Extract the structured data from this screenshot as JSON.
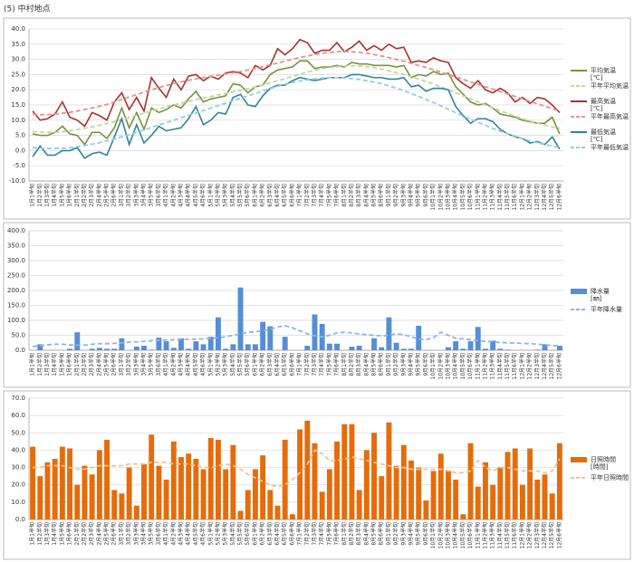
{
  "title": "(5) 中村地点",
  "chart_data": [
    {
      "type": "line",
      "categories": [
        "1月1半旬",
        "1月2半旬",
        "1月3半旬",
        "1月4半旬",
        "1月5半旬",
        "1月6半旬",
        "2月1半旬",
        "2月2半旬",
        "2月3半旬",
        "2月4半旬",
        "2月5半旬",
        "2月6半旬",
        "3月1半旬",
        "3月2半旬",
        "3月3半旬",
        "3月4半旬",
        "3月5半旬",
        "3月6半旬",
        "4月1半旬",
        "4月2半旬",
        "4月3半旬",
        "4月4半旬",
        "4月5半旬",
        "4月6半旬",
        "5月1半旬",
        "5月2半旬",
        "5月3半旬",
        "5月4半旬",
        "5月5半旬",
        "5月6半旬",
        "6月1半旬",
        "6月2半旬",
        "6月3半旬",
        "6月4半旬",
        "6月5半旬",
        "6月6半旬",
        "7月1半旬",
        "7月2半旬",
        "7月3半旬",
        "7月4半旬",
        "7月5半旬",
        "7月6半旬",
        "8月1半旬",
        "8月2半旬",
        "8月3半旬",
        "8月4半旬",
        "8月5半旬",
        "8月6半旬",
        "9月1半旬",
        "9月2半旬",
        "9月3半旬",
        "9月4半旬",
        "9月5半旬",
        "9月6半旬",
        "10月1半旬",
        "10月2半旬",
        "10月3半旬",
        "10月4半旬",
        "10月5半旬",
        "10月6半旬",
        "11月1半旬",
        "11月2半旬",
        "11月3半旬",
        "11月4半旬",
        "11月5半旬",
        "11月6半旬",
        "12月1半旬",
        "12月2半旬",
        "12月3半旬",
        "12月4半旬",
        "12月5半旬",
        "12月6半旬"
      ],
      "ylim": [
        -10,
        40
      ],
      "yticks": [
        {
          "value": -10,
          "label": "-10.0"
        },
        {
          "value": -5,
          "label": "-5.0"
        },
        {
          "value": 0,
          "label": "0.0"
        },
        {
          "value": 5,
          "label": "5.0"
        },
        {
          "value": 10,
          "label": "10.0"
        },
        {
          "value": 15,
          "label": "15.0"
        },
        {
          "value": 20,
          "label": "20.0"
        },
        {
          "value": 25,
          "label": "25.0"
        },
        {
          "value": 30,
          "label": "30.0"
        },
        {
          "value": 35,
          "label": "35.0"
        },
        {
          "value": 40,
          "label": "40.0"
        }
      ],
      "grid": true,
      "series": [
        {
          "name": "平均気温",
          "unit": "[℃]",
          "type": "line",
          "color": "#77933c",
          "values": [
            5.5,
            5,
            5,
            6,
            8,
            5.5,
            5,
            2,
            6,
            6,
            4,
            7.5,
            14,
            7.5,
            12.5,
            7,
            14,
            12.5,
            13.5,
            15,
            14,
            17,
            19.5,
            16,
            17,
            17.5,
            18,
            22,
            21.5,
            19,
            21,
            21.5,
            25,
            26.5,
            27,
            27.5,
            29.5,
            29.5,
            27,
            27.5,
            27.5,
            28,
            27.5,
            29,
            28.5,
            28.5,
            28,
            28,
            28,
            27.5,
            28,
            24,
            25,
            24.5,
            26,
            25,
            25.5,
            21,
            18.5,
            16,
            15,
            15.5,
            14,
            12,
            11.5,
            11,
            10,
            9.5,
            9,
            9,
            11,
            5.5
          ]
        },
        {
          "name": "平年平均気温",
          "type": "line",
          "dashed": true,
          "color": "#c3d69b",
          "values": [
            6.3,
            6.1,
            6,
            6,
            6.2,
            6.5,
            6.9,
            7.3,
            7.8,
            8.3,
            8.9,
            9.5,
            10.2,
            10.9,
            11.6,
            12.3,
            13,
            13.7,
            14.4,
            15,
            15.6,
            16.2,
            16.8,
            17.3,
            17.8,
            18.3,
            18.8,
            19.3,
            19.8,
            20.4,
            21,
            21.6,
            22.3,
            23,
            23.7,
            24.4,
            25.1,
            25.8,
            26.4,
            26.9,
            27.3,
            27.6,
            27.8,
            27.9,
            27.8,
            27.6,
            27.2,
            26.8,
            26.2,
            25.6,
            25,
            24.3,
            23.5,
            22.7,
            21.9,
            21,
            20,
            19,
            18,
            17,
            16,
            15,
            14,
            13.1,
            12.2,
            11.3,
            10.5,
            9.7,
            9,
            8.4,
            7.8,
            7.3
          ]
        },
        {
          "name": "最高気温",
          "unit": "[℃]",
          "type": "line",
          "color": "#a83232",
          "values": [
            13,
            10,
            10.5,
            12,
            16,
            11,
            10,
            8,
            12.5,
            11.5,
            10,
            16,
            19,
            13.5,
            17.5,
            13,
            24,
            20.5,
            17.5,
            23.5,
            20,
            24.5,
            25,
            23,
            24.5,
            23.5,
            25.5,
            26,
            25.5,
            24,
            28,
            26.5,
            28,
            33.5,
            31.5,
            33.5,
            36.5,
            35.5,
            32,
            33,
            33,
            35.5,
            32.5,
            34,
            36,
            33,
            34.5,
            33,
            35,
            33.5,
            34,
            29,
            29.5,
            29,
            30.5,
            29.5,
            29,
            24,
            22,
            20.5,
            23,
            20,
            19,
            20.5,
            19,
            16,
            17.5,
            15.5,
            17.5,
            17,
            15,
            12.5
          ]
        },
        {
          "name": "平年最高気温",
          "type": "line",
          "dashed": true,
          "color": "#e6928c",
          "values": [
            12,
            11.8,
            11.8,
            12,
            12.3,
            12.6,
            13,
            13.5,
            14,
            14.6,
            15.2,
            16,
            16.8,
            17.6,
            18.4,
            19.2,
            20,
            20.7,
            21.4,
            22,
            22.6,
            23.1,
            23.6,
            24,
            24.4,
            24.8,
            25.2,
            25.6,
            26,
            26.5,
            27,
            27.6,
            28.2,
            28.8,
            29.4,
            30,
            30.6,
            31.1,
            31.6,
            32,
            32.3,
            32.5,
            32.6,
            32.5,
            32.3,
            32,
            31.6,
            31.1,
            30.6,
            30,
            29.4,
            28.7,
            28,
            27.3,
            26.6,
            25.8,
            25,
            24.2,
            23.4,
            22.6,
            21.8,
            21,
            20.2,
            19.4,
            18.6,
            17.8,
            17,
            16.2,
            15.4,
            14.6,
            13.8,
            13
          ]
        },
        {
          "name": "最低気温",
          "unit": "[℃]",
          "type": "line",
          "color": "#31859c",
          "values": [
            -2,
            1.5,
            -1.5,
            -1.5,
            0,
            0,
            1,
            -2.5,
            -1,
            -0.5,
            -1.5,
            4.5,
            10.5,
            2,
            8.5,
            2.5,
            5,
            8,
            6.5,
            7,
            7.5,
            10.5,
            14.5,
            8.5,
            10,
            12.5,
            12,
            17.5,
            18.5,
            15,
            14.5,
            18,
            20.5,
            21.5,
            21.5,
            23,
            24,
            23.5,
            23,
            23.5,
            24,
            24,
            24,
            25,
            25,
            24.5,
            24,
            24,
            23.5,
            23.5,
            24,
            21,
            21.5,
            19.5,
            20.5,
            20.5,
            20,
            14.5,
            11.5,
            9,
            10.5,
            10.5,
            9.5,
            7,
            5.5,
            4.5,
            4,
            2.5,
            3,
            2,
            4.5,
            0.5
          ]
        },
        {
          "name": "平年最低気温",
          "type": "line",
          "dashed": true,
          "color": "#93cddd",
          "values": [
            1,
            0.8,
            0.7,
            0.7,
            0.8,
            1,
            1.3,
            1.7,
            2.1,
            2.6,
            3.2,
            3.8,
            4.5,
            5.2,
            6,
            6.8,
            7.6,
            8.4,
            9.2,
            10,
            10.8,
            11.6,
            12.4,
            13.2,
            14,
            14.8,
            15.6,
            16.4,
            17.2,
            18,
            18.8,
            19.6,
            20.4,
            21.1,
            21.8,
            22.4,
            22.9,
            23.3,
            23.6,
            23.8,
            24,
            24,
            23.9,
            23.7,
            23.4,
            23,
            22.5,
            22,
            21.3,
            20.5,
            19.7,
            18.8,
            17.8,
            16.8,
            15.8,
            14.7,
            13.6,
            12.5,
            11.4,
            10.3,
            9.3,
            8.3,
            7.3,
            6.4,
            5.5,
            4.7,
            3.9,
            3.2,
            2.6,
            2,
            1.5,
            1
          ]
        }
      ]
    },
    {
      "type": "bar",
      "categories": [
        "1月1半旬",
        "1月2半旬",
        "1月3半旬",
        "1月4半旬",
        "1月5半旬",
        "1月6半旬",
        "2月1半旬",
        "2月2半旬",
        "2月3半旬",
        "2月4半旬",
        "2月5半旬",
        "2月6半旬",
        "3月1半旬",
        "3月2半旬",
        "3月3半旬",
        "3月4半旬",
        "3月5半旬",
        "3月6半旬",
        "4月1半旬",
        "4月2半旬",
        "4月3半旬",
        "4月4半旬",
        "4月5半旬",
        "4月6半旬",
        "5月1半旬",
        "5月2半旬",
        "5月3半旬",
        "5月4半旬",
        "5月5半旬",
        "5月6半旬",
        "6月1半旬",
        "6月2半旬",
        "6月3半旬",
        "6月4半旬",
        "6月5半旬",
        "6月6半旬",
        "7月1半旬",
        "7月2半旬",
        "7月3半旬",
        "7月4半旬",
        "7月5半旬",
        "7月6半旬",
        "8月1半旬",
        "8月2半旬",
        "8月3半旬",
        "8月4半旬",
        "8月5半旬",
        "8月6半旬",
        "9月1半旬",
        "9月2半旬",
        "9月3半旬",
        "9月4半旬",
        "9月5半旬",
        "9月6半旬",
        "10月1半旬",
        "10月2半旬",
        "10月3半旬",
        "10月4半旬",
        "10月5半旬",
        "10月6半旬",
        "11月1半旬",
        "11月2半旬",
        "11月3半旬",
        "11月4半旬",
        "11月5半旬",
        "11月6半旬",
        "12月1半旬",
        "12月2半旬",
        "12月3半旬",
        "12月4半旬",
        "12月5半旬",
        "12月6半旬"
      ],
      "ylim": [
        0,
        400
      ],
      "yticks": [
        {
          "value": 0,
          "label": "0.0"
        },
        {
          "value": 50,
          "label": "50.0"
        },
        {
          "value": 100,
          "label": "100.0"
        },
        {
          "value": 150,
          "label": "150.0"
        },
        {
          "value": 200,
          "label": "200.0"
        },
        {
          "value": 250,
          "label": "250.0"
        },
        {
          "value": 300,
          "label": "300.0"
        },
        {
          "value": 350,
          "label": "350.0"
        },
        {
          "value": 400,
          "label": "400.0"
        }
      ],
      "grid": true,
      "series": [
        {
          "name": "降水量",
          "unit": "[㎜]",
          "type": "bar",
          "color": "#558ed5",
          "values": [
            0,
            20,
            0,
            0,
            0,
            5,
            60,
            0,
            5,
            8,
            5,
            5,
            40,
            0,
            12,
            15,
            2,
            42,
            30,
            8,
            40,
            5,
            30,
            20,
            45,
            110,
            5,
            20,
            210,
            20,
            20,
            95,
            80,
            0,
            45,
            0,
            0,
            15,
            120,
            88,
            22,
            22,
            0,
            12,
            15,
            0,
            40,
            10,
            110,
            25,
            5,
            5,
            82,
            0,
            0,
            0,
            10,
            30,
            5,
            30,
            78,
            5,
            32,
            5,
            2,
            0,
            0,
            0,
            2,
            20,
            0,
            15
          ]
        },
        {
          "name": "平年降水量",
          "type": "line",
          "dashed": true,
          "color": "#8eb4e3",
          "values": [
            12,
            15,
            18,
            20,
            20,
            18,
            17,
            17,
            20,
            22,
            22,
            23,
            25,
            27,
            28,
            30,
            32,
            33,
            34,
            35,
            36,
            37,
            37,
            38,
            40,
            42,
            45,
            50,
            55,
            60,
            62,
            65,
            70,
            78,
            82,
            75,
            65,
            55,
            48,
            45,
            50,
            58,
            60,
            58,
            55,
            52,
            50,
            48,
            50,
            55,
            52,
            45,
            38,
            35,
            42,
            60,
            50,
            40,
            38,
            35,
            32,
            30,
            28,
            26,
            25,
            24,
            23,
            22,
            20,
            18,
            16,
            14
          ]
        }
      ]
    },
    {
      "type": "bar",
      "categories": [
        "1月1半旬",
        "1月2半旬",
        "1月3半旬",
        "1月4半旬",
        "1月5半旬",
        "1月6半旬",
        "2月1半旬",
        "2月2半旬",
        "2月3半旬",
        "2月4半旬",
        "2月5半旬",
        "2月6半旬",
        "3月1半旬",
        "3月2半旬",
        "3月3半旬",
        "3月4半旬",
        "3月5半旬",
        "3月6半旬",
        "4月1半旬",
        "4月2半旬",
        "4月3半旬",
        "4月4半旬",
        "4月5半旬",
        "4月6半旬",
        "5月1半旬",
        "5月2半旬",
        "5月3半旬",
        "5月4半旬",
        "5月5半旬",
        "5月6半旬",
        "6月1半旬",
        "6月2半旬",
        "6月3半旬",
        "6月4半旬",
        "6月5半旬",
        "6月6半旬",
        "7月1半旬",
        "7月2半旬",
        "7月3半旬",
        "7月4半旬",
        "7月5半旬",
        "7月6半旬",
        "8月1半旬",
        "8月2半旬",
        "8月3半旬",
        "8月4半旬",
        "8月5半旬",
        "8月6半旬",
        "9月1半旬",
        "9月2半旬",
        "9月3半旬",
        "9月4半旬",
        "9月5半旬",
        "9月6半旬",
        "10月1半旬",
        "10月2半旬",
        "10月3半旬",
        "10月4半旬",
        "10月5半旬",
        "10月6半旬",
        "11月1半旬",
        "11月2半旬",
        "11月3半旬",
        "11月4半旬",
        "11月5半旬",
        "11月6半旬",
        "12月1半旬",
        "12月2半旬",
        "12月3半旬",
        "12月4半旬",
        "12月5半旬",
        "12月6半旬"
      ],
      "ylim": [
        0,
        70
      ],
      "yticks": [
        {
          "value": 0,
          "label": "0.0"
        },
        {
          "value": 10,
          "label": "10.0"
        },
        {
          "value": 20,
          "label": "20.0"
        },
        {
          "value": 30,
          "label": "30.0"
        },
        {
          "value": 40,
          "label": "40.0"
        },
        {
          "value": 50,
          "label": "50.0"
        },
        {
          "value": 60,
          "label": "60.0"
        },
        {
          "value": 70,
          "label": "70.0"
        }
      ],
      "grid": true,
      "series": [
        {
          "name": "日照時間",
          "unit": "[時間]",
          "type": "bar",
          "color": "#e46c0a",
          "values": [
            42,
            25,
            33,
            35,
            42,
            41,
            20,
            31,
            26,
            40,
            46,
            17,
            15,
            30,
            8,
            32,
            49,
            31,
            23,
            45,
            36,
            38,
            35,
            29,
            47,
            46,
            29,
            43,
            5,
            17,
            29,
            37,
            17,
            8,
            46,
            3,
            52,
            57,
            44,
            16,
            29,
            45,
            55,
            55,
            17,
            40,
            50,
            25,
            56,
            31,
            43,
            34,
            30,
            11,
            28,
            38,
            28,
            23,
            3,
            44,
            19,
            33,
            20,
            30,
            39,
            41,
            20,
            41,
            23,
            26,
            15,
            44
          ]
        },
        {
          "name": "平年日照時間",
          "type": "line",
          "dashed": true,
          "color": "#fac090",
          "values": [
            30,
            30,
            31,
            31,
            31,
            30,
            29,
            29,
            30,
            31,
            31,
            31,
            31,
            32,
            32,
            32,
            33,
            33,
            33,
            32,
            32,
            32,
            31,
            30,
            30,
            31,
            32,
            31,
            29,
            26,
            24,
            22,
            20,
            19,
            20,
            23,
            27,
            32,
            40,
            38,
            34,
            34,
            35,
            36,
            35,
            34,
            33,
            32,
            31,
            30,
            30,
            29,
            29,
            29,
            29,
            29,
            28,
            27,
            27,
            28,
            34,
            30,
            28,
            30,
            30,
            29,
            28,
            28,
            28,
            27,
            28,
            35
          ]
        }
      ]
    }
  ]
}
